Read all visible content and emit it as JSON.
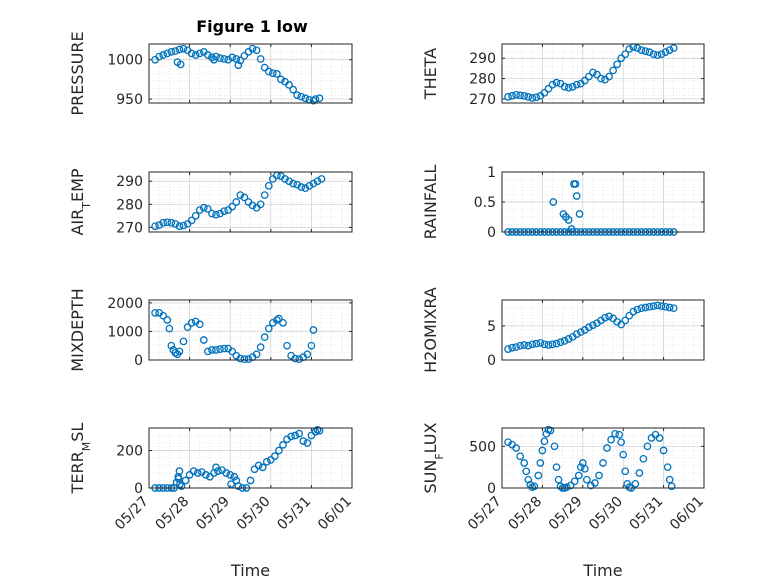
{
  "figure": {
    "title": "Figure 1 low",
    "marker_color": "#0072BD",
    "marker": "circle-open"
  },
  "chart_data": [
    {
      "type": "scatter",
      "id": "pressure",
      "ylabel": "PRESSURE",
      "ylim": [
        945,
        1020
      ],
      "yticks": [
        950,
        1000
      ],
      "yticklabels": [
        "950",
        "1000"
      ],
      "xlim": [
        0,
        5
      ],
      "xlabel": "",
      "xticklabels": [],
      "grid": true,
      "x": [
        0.15,
        0.25,
        0.35,
        0.45,
        0.55,
        0.65,
        0.75,
        0.85,
        0.95,
        1.05,
        1.15,
        1.25,
        1.35,
        1.45,
        1.55,
        1.65,
        1.75,
        1.85,
        1.95,
        2.05,
        2.15,
        2.25,
        2.35,
        2.45,
        2.55,
        2.65,
        2.75,
        2.85,
        2.95,
        3.05,
        3.15,
        3.25,
        3.35,
        3.45,
        3.55,
        3.65,
        3.75,
        3.85,
        3.95,
        4.05,
        4.1,
        4.2,
        0.7,
        0.78,
        1.6,
        2.2
      ],
      "y": [
        1000,
        1004,
        1006,
        1008,
        1010,
        1011,
        1013,
        1014,
        1012,
        1008,
        1006,
        1008,
        1010,
        1006,
        1003,
        1004,
        1002,
        1001,
        1000,
        1003,
        1001,
        999,
        1005,
        1010,
        1014,
        1012,
        1001,
        990,
        985,
        983,
        982,
        975,
        972,
        968,
        962,
        955,
        953,
        951,
        949,
        948,
        950,
        951,
        997,
        994,
        1000,
        993
      ]
    },
    {
      "type": "scatter",
      "id": "theta",
      "ylabel": "THETA",
      "ylim": [
        268,
        297
      ],
      "yticks": [
        270,
        280,
        290
      ],
      "yticklabels": [
        "270",
        "280",
        "290"
      ],
      "xlim": [
        0,
        5
      ],
      "xlabel": "",
      "xticklabels": [],
      "grid": true,
      "x": [
        0.15,
        0.25,
        0.35,
        0.45,
        0.55,
        0.65,
        0.75,
        0.85,
        0.95,
        1.05,
        1.15,
        1.25,
        1.35,
        1.45,
        1.55,
        1.65,
        1.75,
        1.85,
        1.95,
        2.05,
        2.15,
        2.25,
        2.35,
        2.45,
        2.55,
        2.65,
        2.75,
        2.85,
        2.95,
        3.05,
        3.15,
        3.25,
        3.35,
        3.45,
        3.55,
        3.65,
        3.75,
        3.85,
        3.95,
        4.05,
        4.15,
        4.25
      ],
      "y": [
        271,
        271.5,
        272,
        271.8,
        271.5,
        271,
        270.5,
        270.8,
        271.5,
        273,
        275,
        277,
        278,
        277.5,
        276,
        275.5,
        276,
        277,
        277.5,
        279,
        281,
        283,
        282,
        280,
        279.5,
        281,
        284,
        287,
        290,
        292,
        294.5,
        295.5,
        295,
        294,
        293.5,
        293,
        292,
        291.5,
        292,
        293,
        294,
        295
      ]
    },
    {
      "type": "scatter",
      "id": "air_temp",
      "ylabel": "AIR_TEMP",
      "ylim": [
        268,
        294
      ],
      "yticks": [
        270,
        280,
        290
      ],
      "yticklabels": [
        "270",
        "280",
        "290"
      ],
      "xlim": [
        0,
        5
      ],
      "xlabel": "",
      "xticklabels": [],
      "grid": true,
      "x": [
        0.15,
        0.25,
        0.35,
        0.45,
        0.55,
        0.65,
        0.75,
        0.85,
        0.95,
        1.05,
        1.15,
        1.25,
        1.35,
        1.45,
        1.55,
        1.65,
        1.75,
        1.85,
        1.95,
        2.05,
        2.15,
        2.25,
        2.35,
        2.45,
        2.55,
        2.65,
        2.75,
        2.85,
        2.95,
        3.05,
        3.15,
        3.25,
        3.35,
        3.45,
        3.55,
        3.65,
        3.75,
        3.85,
        3.95,
        4.05,
        4.15,
        4.25
      ],
      "y": [
        270.5,
        271,
        272,
        272.2,
        272,
        271.5,
        270.5,
        270.8,
        271.5,
        273,
        275,
        277.5,
        278.5,
        278,
        276,
        275.5,
        276,
        277,
        277.5,
        279,
        281,
        284,
        283,
        281,
        279.5,
        278.5,
        280,
        284,
        288,
        291,
        292.5,
        292.2,
        291,
        290,
        289,
        288.5,
        287.5,
        287,
        288,
        289,
        290,
        291
      ]
    },
    {
      "type": "scatter",
      "id": "rainfall",
      "ylabel": "RAINFALL",
      "ylim": [
        0,
        1
      ],
      "yticks": [
        0,
        0.5,
        1
      ],
      "yticklabels": [
        "0",
        "0.5",
        "1"
      ],
      "xlim": [
        0,
        5
      ],
      "xlabel": "",
      "xticklabels": [],
      "grid": true,
      "x": [
        0.15,
        0.25,
        0.35,
        0.45,
        0.55,
        0.65,
        0.75,
        0.85,
        0.95,
        1.05,
        1.15,
        1.25,
        1.35,
        1.45,
        1.55,
        1.65,
        1.75,
        1.85,
        1.95,
        2.05,
        2.15,
        2.25,
        2.35,
        2.45,
        2.55,
        2.65,
        2.75,
        2.85,
        2.95,
        3.05,
        3.15,
        3.25,
        3.35,
        3.45,
        3.55,
        3.65,
        3.75,
        3.85,
        3.95,
        4.05,
        4.15,
        4.25,
        1.27,
        1.52,
        1.58,
        1.65,
        1.78,
        1.85,
        1.92,
        1.82,
        1.72
      ],
      "y": [
        0,
        0,
        0,
        0,
        0,
        0,
        0,
        0,
        0,
        0,
        0,
        0,
        0,
        0,
        0,
        0,
        0,
        0,
        0,
        0,
        0,
        0,
        0,
        0,
        0,
        0,
        0,
        0,
        0,
        0,
        0,
        0,
        0,
        0,
        0,
        0,
        0,
        0,
        0,
        0,
        0,
        0,
        0.5,
        0.3,
        0.25,
        0.2,
        0.8,
        0.6,
        0.3,
        0.8,
        0.05
      ]
    },
    {
      "type": "scatter",
      "id": "mixdepth",
      "ylabel": "MIXDEPTH",
      "ylim": [
        0,
        2100
      ],
      "yticks": [
        0,
        1000,
        2000
      ],
      "yticklabels": [
        "0",
        "1000",
        "2000"
      ],
      "xlim": [
        0,
        5
      ],
      "xlabel": "",
      "xticklabels": [],
      "grid": true,
      "x": [
        0.15,
        0.25,
        0.35,
        0.45,
        0.5,
        0.55,
        0.6,
        0.65,
        0.7,
        0.75,
        0.85,
        0.95,
        1.05,
        1.15,
        1.25,
        1.35,
        1.45,
        1.55,
        1.65,
        1.75,
        1.85,
        1.95,
        2.05,
        2.15,
        2.25,
        2.35,
        2.45,
        2.55,
        2.65,
        2.75,
        2.85,
        2.95,
        3.05,
        3.15,
        3.2,
        3.3,
        3.4,
        3.5,
        3.6,
        3.7,
        3.8,
        3.9,
        4.0,
        4.05
      ],
      "y": [
        1650,
        1650,
        1550,
        1400,
        1100,
        500,
        350,
        250,
        200,
        300,
        650,
        1150,
        1300,
        1350,
        1250,
        700,
        300,
        350,
        350,
        380,
        400,
        400,
        300,
        150,
        50,
        30,
        30,
        100,
        200,
        450,
        800,
        1100,
        1300,
        1400,
        1450,
        1300,
        500,
        150,
        50,
        30,
        100,
        200,
        500,
        1050
      ]
    },
    {
      "type": "scatter",
      "id": "h2omixra",
      "ylabel": "H2OMIXRA",
      "ylim": [
        0,
        8.8
      ],
      "yticks": [
        0,
        5
      ],
      "yticklabels": [
        "0",
        "5"
      ],
      "xlim": [
        0,
        5
      ],
      "xlabel": "",
      "xticklabels": [],
      "grid": true,
      "x": [
        0.15,
        0.25,
        0.35,
        0.45,
        0.55,
        0.65,
        0.75,
        0.85,
        0.95,
        1.05,
        1.15,
        1.25,
        1.35,
        1.45,
        1.55,
        1.65,
        1.75,
        1.85,
        1.95,
        2.05,
        2.15,
        2.25,
        2.35,
        2.45,
        2.55,
        2.65,
        2.75,
        2.85,
        2.95,
        3.05,
        3.15,
        3.25,
        3.35,
        3.45,
        3.55,
        3.65,
        3.75,
        3.85,
        3.95,
        4.05,
        4.15,
        4.25
      ],
      "y": [
        1.6,
        1.8,
        1.9,
        2.1,
        2.2,
        2.1,
        2.3,
        2.4,
        2.5,
        2.3,
        2.2,
        2.3,
        2.4,
        2.6,
        2.8,
        3.1,
        3.4,
        3.8,
        4.1,
        4.4,
        4.8,
        5.1,
        5.4,
        5.8,
        6.2,
        6.4,
        6.1,
        5.6,
        5.2,
        5.8,
        6.5,
        7.1,
        7.4,
        7.6,
        7.7,
        7.8,
        7.9,
        8.0,
        7.9,
        7.8,
        7.7,
        7.6
      ]
    },
    {
      "type": "scatter",
      "id": "terr_msl",
      "ylabel": "TERR_MSL",
      "ylim": [
        0,
        320
      ],
      "yticks": [
        0,
        200
      ],
      "yticklabels": [
        "0",
        "200"
      ],
      "xlim": [
        0,
        5
      ],
      "xlabel": "Time",
      "grid": true,
      "xticks": [
        0,
        1,
        2,
        3,
        4,
        5
      ],
      "xticklabels": [
        "05/27",
        "05/28",
        "05/29",
        "05/30",
        "05/31",
        "06/01"
      ],
      "x": [
        0.15,
        0.25,
        0.35,
        0.45,
        0.55,
        0.62,
        0.68,
        0.72,
        0.75,
        0.8,
        0.9,
        1.0,
        1.1,
        1.2,
        1.3,
        1.4,
        1.5,
        1.6,
        1.7,
        1.8,
        1.9,
        2.0,
        2.1,
        2.15,
        2.2,
        2.3,
        2.4,
        2.5,
        2.6,
        2.7,
        2.8,
        2.9,
        3.0,
        3.1,
        3.2,
        3.3,
        3.4,
        3.5,
        3.6,
        3.7,
        3.8,
        3.9,
        4.0,
        4.1,
        4.15,
        4.2,
        0.73,
        0.76,
        1.65,
        2.02
      ],
      "y": [
        0,
        0,
        0,
        0,
        0,
        0,
        30,
        60,
        90,
        10,
        40,
        70,
        90,
        80,
        85,
        70,
        60,
        80,
        90,
        95,
        80,
        70,
        60,
        40,
        10,
        0,
        0,
        40,
        100,
        120,
        110,
        140,
        150,
        170,
        200,
        230,
        260,
        275,
        280,
        290,
        250,
        240,
        280,
        300,
        310,
        305,
        50,
        20,
        110,
        20
      ]
    },
    {
      "type": "scatter",
      "id": "sun_flux",
      "ylabel": "SUN_FLUX",
      "ylim": [
        0,
        720
      ],
      "yticks": [
        0,
        500
      ],
      "yticklabels": [
        "0",
        "500"
      ],
      "xlim": [
        0,
        5
      ],
      "xlabel": "Time",
      "grid": true,
      "xticks": [
        0,
        1,
        2,
        3,
        4,
        5
      ],
      "xticklabels": [
        "05/27",
        "05/28",
        "05/29",
        "05/30",
        "05/31",
        "06/01"
      ],
      "x": [
        0.15,
        0.25,
        0.35,
        0.45,
        0.55,
        0.6,
        0.65,
        0.7,
        0.75,
        0.8,
        0.9,
        0.95,
        1.0,
        1.05,
        1.1,
        1.15,
        1.2,
        1.3,
        1.35,
        1.4,
        1.45,
        1.5,
        1.55,
        1.6,
        1.7,
        1.8,
        1.9,
        1.95,
        2.0,
        2.05,
        2.1,
        2.2,
        2.3,
        2.4,
        2.5,
        2.6,
        2.7,
        2.8,
        2.9,
        2.95,
        3.0,
        3.05,
        3.1,
        3.15,
        3.2,
        3.3,
        3.4,
        3.5,
        3.6,
        3.7,
        3.8,
        3.9,
        4.0,
        4.1,
        4.15,
        4.2
      ],
      "y": [
        550,
        520,
        480,
        380,
        300,
        200,
        100,
        40,
        10,
        20,
        150,
        300,
        450,
        560,
        650,
        700,
        690,
        500,
        250,
        100,
        20,
        0,
        0,
        10,
        30,
        80,
        150,
        250,
        300,
        230,
        100,
        30,
        60,
        150,
        300,
        480,
        580,
        650,
        640,
        550,
        400,
        200,
        50,
        10,
        0,
        50,
        180,
        350,
        500,
        600,
        640,
        600,
        450,
        250,
        100,
        20
      ]
    }
  ]
}
